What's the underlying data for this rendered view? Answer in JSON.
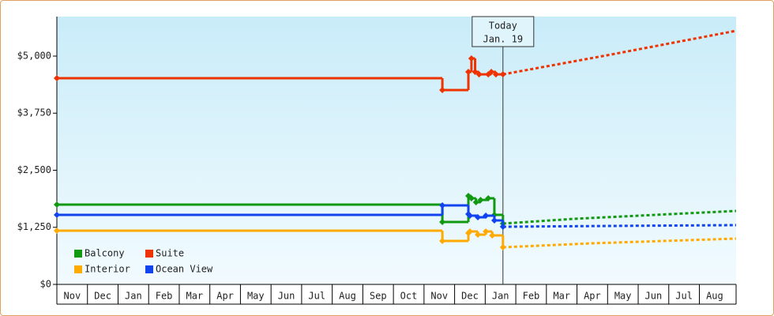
{
  "chart_data": {
    "type": "step-line",
    "xlim": [
      0,
      22.2
    ],
    "ylim": [
      0,
      5865
    ],
    "xticks": [
      {
        "value": 0,
        "label": "Nov"
      },
      {
        "value": 1,
        "label": "Dec"
      },
      {
        "value": 2,
        "label": "Jan"
      },
      {
        "value": 3,
        "label": "Feb"
      },
      {
        "value": 4,
        "label": "Mar"
      },
      {
        "value": 5,
        "label": "Apr"
      },
      {
        "value": 6,
        "label": "May"
      },
      {
        "value": 7,
        "label": "Jun"
      },
      {
        "value": 8,
        "label": "Jul"
      },
      {
        "value": 9,
        "label": "Aug"
      },
      {
        "value": 10,
        "label": "Sep"
      },
      {
        "value": 11,
        "label": "Oct"
      },
      {
        "value": 12,
        "label": "Nov"
      },
      {
        "value": 13,
        "label": "Dec"
      },
      {
        "value": 14,
        "label": "Jan"
      },
      {
        "value": 15,
        "label": "Feb"
      },
      {
        "value": 16,
        "label": "Mar"
      },
      {
        "value": 17,
        "label": "Apr"
      },
      {
        "value": 18,
        "label": "May"
      },
      {
        "value": 19,
        "label": "Jun"
      },
      {
        "value": 20,
        "label": "Jul"
      },
      {
        "value": 21,
        "label": "Aug"
      }
    ],
    "yticks": [
      {
        "value": 0,
        "label": "$0"
      },
      {
        "value": 1250,
        "label": "$1,250"
      },
      {
        "value": 2500,
        "label": "$2,500"
      },
      {
        "value": 3750,
        "label": "$3,750"
      },
      {
        "value": 5000,
        "label": "$5,000"
      }
    ],
    "today": {
      "x": 14.58,
      "label": [
        "Today",
        "Jan. 19"
      ]
    },
    "series": [
      {
        "name": "Balcony",
        "color": "#119911",
        "x": [
          0,
          12.6,
          13.45,
          13.55,
          13.7,
          13.85,
          14.1,
          14.3,
          14.58
        ],
        "values": [
          1747,
          1367,
          1938,
          1886,
          1800,
          1850,
          1886,
          1523,
          1332
        ],
        "forecast": {
          "x": [
            14.58,
            16.9,
            22.2
          ],
          "values": [
            1332,
            1436,
            1609
          ]
        }
      },
      {
        "name": "Suite",
        "color": "#ee3300",
        "x": [
          0,
          12.6,
          13.45,
          13.55,
          13.67,
          13.8,
          14.1,
          14.2,
          14.35,
          14.58
        ],
        "values": [
          4515,
          4255,
          4654,
          4948,
          4654,
          4600,
          4600,
          4654,
          4600,
          4600
        ],
        "forecast": {
          "x": [
            14.58,
            18,
            22.2
          ],
          "values": [
            4600,
            5020,
            5554
          ]
        }
      },
      {
        "name": "Interior",
        "color": "#ffaa00",
        "x": [
          0,
          12.6,
          13.45,
          13.5,
          13.76,
          14.02,
          14.23,
          14.58
        ],
        "values": [
          1176,
          952,
          1125,
          1159,
          1090,
          1159,
          1073,
          813
        ],
        "forecast": {
          "x": [
            14.58,
            17.5,
            22.2
          ],
          "values": [
            813,
            900,
            1003
          ]
        }
      },
      {
        "name": "Ocean View",
        "color": "#1144ee",
        "x": [
          0,
          12.6,
          13.45,
          13.5,
          13.76,
          14.02,
          14.3,
          14.58
        ],
        "values": [
          1523,
          1730,
          1540,
          1505,
          1470,
          1505,
          1401,
          1263
        ],
        "forecast": {
          "x": [
            14.58,
            18,
            22.2
          ],
          "values": [
            1263,
            1280,
            1298
          ]
        }
      }
    ]
  }
}
